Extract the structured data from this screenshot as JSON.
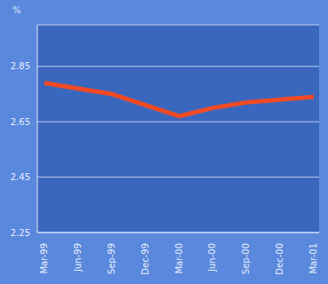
{
  "chart_data": {
    "type": "line",
    "ylabel": "%",
    "categories": [
      "Mar-99",
      "Jun-99",
      "Sep-99",
      "Dec-99",
      "Mar-00",
      "Jun-00",
      "Sep-00",
      "Dec-00",
      "Mar-01"
    ],
    "values": [
      2.79,
      2.77,
      2.75,
      2.71,
      2.67,
      2.7,
      2.72,
      2.73,
      2.74
    ],
    "color": "#f04a24",
    "ylim": [
      2.25,
      3.0
    ],
    "yticks": [
      2.25,
      2.45,
      2.65,
      2.85
    ],
    "grid": true
  }
}
